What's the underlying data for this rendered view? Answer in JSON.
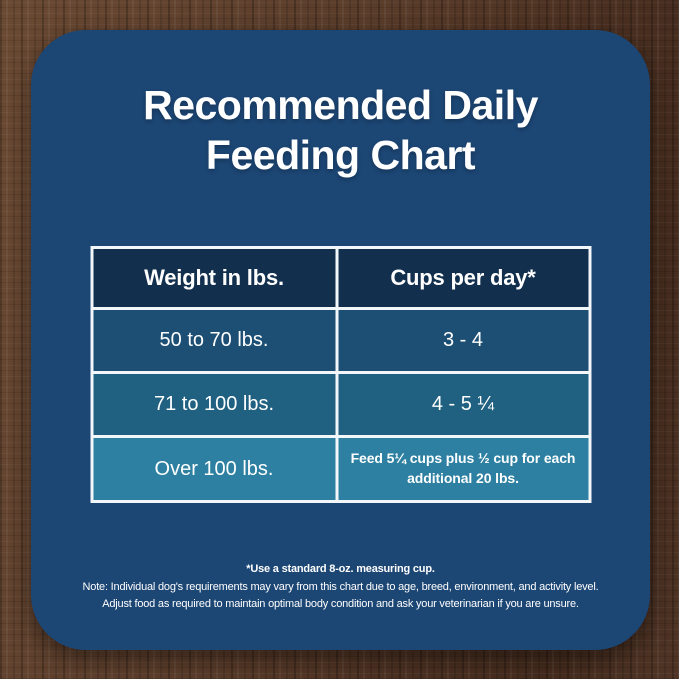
{
  "title": {
    "line1": "Recommended Daily",
    "line2": "Feeding Chart"
  },
  "chart_data": {
    "type": "table",
    "title": "Recommended Daily Feeding Chart",
    "columns": [
      "Weight in lbs.",
      "Cups per day*"
    ],
    "rows": [
      [
        "50 to 70 lbs.",
        "3 - 4"
      ],
      [
        "71 to 100 lbs.",
        "4 - 5 ¼"
      ],
      [
        "Over 100 lbs.",
        "Feed 5¼ cups plus ½ cup for each additional 20 lbs."
      ]
    ]
  },
  "footnotes": {
    "measuring_cup_note": "*Use a standard 8-oz. measuring cup.",
    "note_line1": "Note: Individual dog's requirements may vary from this chart due to age, breed, environment, and activity level.",
    "note_line2": "Adjust food as required to maintain optimal body condition and ask your veterinarian if you are unsure."
  },
  "colors": {
    "card_bg": "#1c4674",
    "header_bg": "#12304e",
    "row1_bg": "#1d4e74",
    "row2_bg": "#206080",
    "row3_bg": "#2d80a1",
    "border": "#f4f7f9",
    "text": "#ffffff",
    "wood_base": "#563a28"
  }
}
